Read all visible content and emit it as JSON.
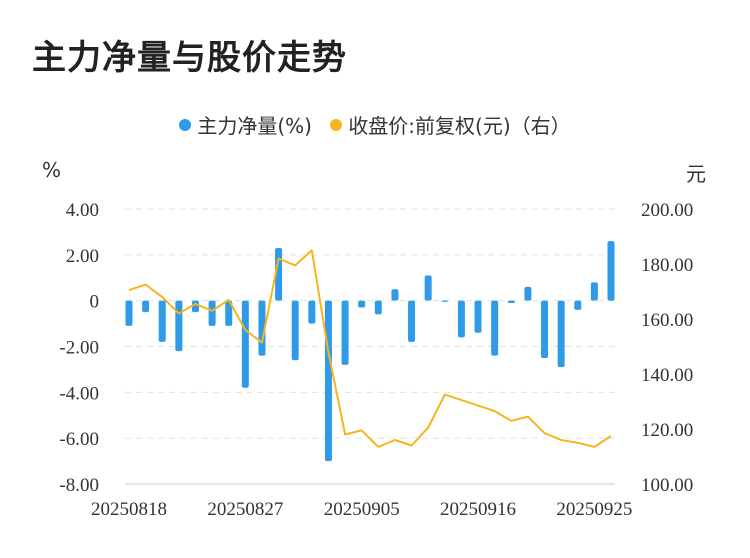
{
  "chart_data": {
    "type": "bar+line",
    "title": "主力净量与股价走势",
    "y_left_unit": "%",
    "y_right_unit": "元",
    "y_left_ticks": [
      "4.00",
      "2.00",
      "0",
      "-2.00",
      "-4.00",
      "-6.00",
      "-8.00"
    ],
    "y_right_ticks": [
      "200.00",
      "180.00",
      "160.00",
      "140.00",
      "120.00",
      "100.00"
    ],
    "ylim_left": [
      -8,
      4
    ],
    "ylim_right": [
      100,
      200
    ],
    "x_tick_labels": [
      "20250818",
      "20250827",
      "20250905",
      "20250916",
      "20250925"
    ],
    "x_tick_indices": [
      0,
      7,
      14,
      21,
      28
    ],
    "grid": true,
    "legend_position": "top-center",
    "series": [
      {
        "name": "主力净量(%)",
        "type": "bar",
        "color": "#2f9ae8",
        "values": [
          -1.1,
          -0.5,
          -1.8,
          -2.2,
          -0.5,
          -1.1,
          -1.1,
          -3.8,
          -2.4,
          2.3,
          -2.6,
          -1.0,
          -7.0,
          -2.8,
          -0.3,
          -0.6,
          0.5,
          -1.8,
          1.1,
          -0.05,
          -1.6,
          -1.4,
          -2.4,
          -0.1,
          0.6,
          -2.5,
          -2.9,
          -0.4,
          0.8,
          2.6
        ]
      },
      {
        "name": "收盘价:前复权(元)（右）",
        "type": "line",
        "color": "#f5b51c",
        "values": [
          170.5,
          172.5,
          168,
          162,
          165.5,
          163,
          167,
          156,
          151.5,
          182,
          179.5,
          185,
          148,
          118,
          119.5,
          113.5,
          116,
          114,
          120.5,
          132.5,
          130.5,
          128.5,
          126.5,
          123,
          124.5,
          118.5,
          116,
          115,
          113.5,
          117.5
        ]
      }
    ]
  }
}
